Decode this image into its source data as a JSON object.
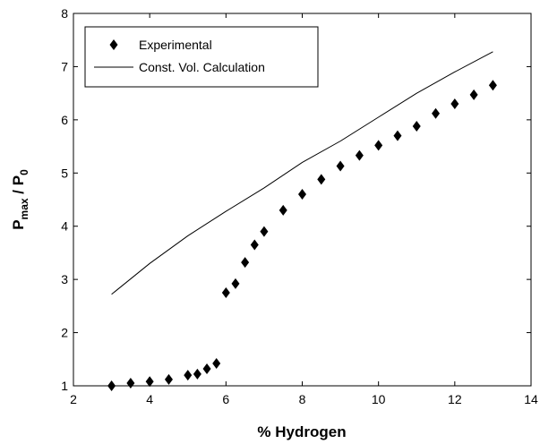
{
  "chart_data": {
    "type": "scatter-line",
    "xlabel": "% Hydrogen",
    "ylabel": [
      "P",
      "max",
      " / P",
      "0"
    ],
    "xlim": [
      2,
      14
    ],
    "xticks": [
      2,
      4,
      6,
      8,
      10,
      12,
      14
    ],
    "ylim": [
      1,
      8
    ],
    "yticks": [
      1,
      2,
      3,
      4,
      5,
      6,
      7,
      8
    ],
    "legend": "top-left",
    "series": [
      {
        "name": "Experimental",
        "kind": "marker",
        "color": "#000000",
        "x": [
          3,
          3.5,
          4,
          4.5,
          5,
          5.25,
          5.5,
          5.75,
          6,
          6.25,
          6.5,
          6.75,
          7,
          7.5,
          8,
          8.5,
          9,
          9.5,
          10,
          10.5,
          11,
          11.5,
          12,
          12.5,
          13
        ],
        "values": [
          1.0,
          1.05,
          1.08,
          1.12,
          1.2,
          1.22,
          1.32,
          1.42,
          2.75,
          2.92,
          3.32,
          3.65,
          3.9,
          4.3,
          4.6,
          4.88,
          5.13,
          5.33,
          5.52,
          5.7,
          5.88,
          6.12,
          6.3,
          6.47,
          6.65
        ]
      },
      {
        "name": "Const. Vol. Calculation",
        "kind": "line",
        "color": "#000000",
        "x": [
          3,
          4,
          5,
          6,
          7,
          8,
          9,
          10,
          11,
          12,
          13
        ],
        "values": [
          2.72,
          3.3,
          3.82,
          4.28,
          4.72,
          5.2,
          5.6,
          6.05,
          6.5,
          6.9,
          7.28
        ]
      }
    ]
  }
}
